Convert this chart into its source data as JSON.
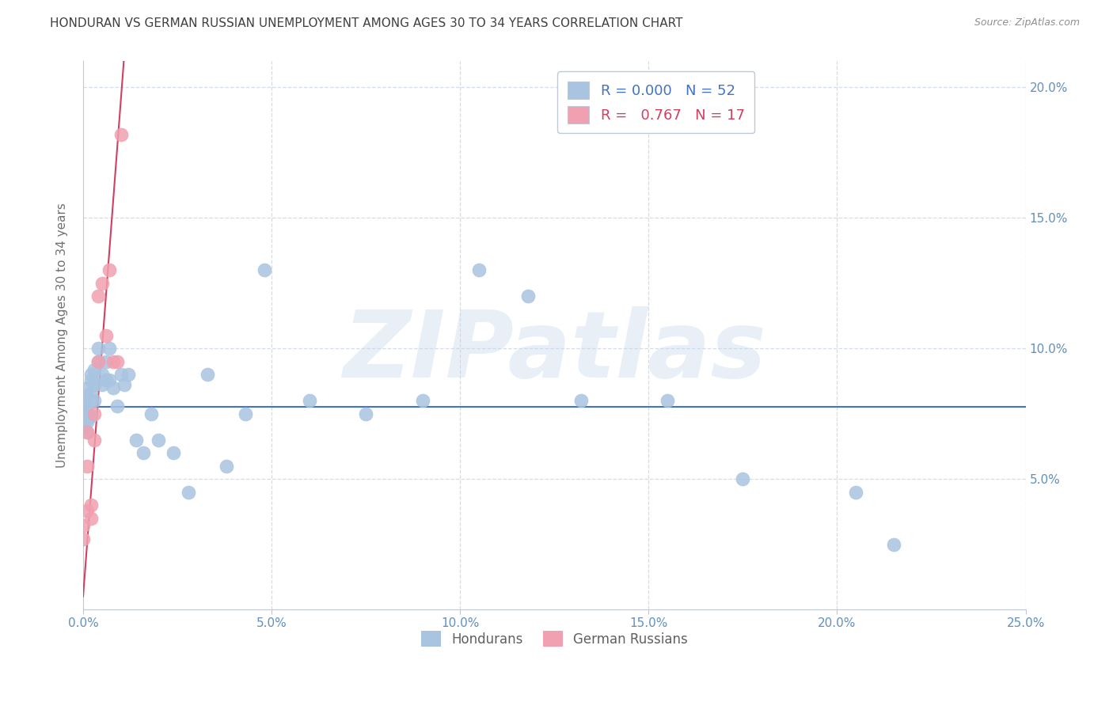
{
  "title": "HONDURAN VS GERMAN RUSSIAN UNEMPLOYMENT AMONG AGES 30 TO 34 YEARS CORRELATION CHART",
  "source": "Source: ZipAtlas.com",
  "ylabel": "Unemployment Among Ages 30 to 34 years",
  "xlim": [
    0.0,
    0.25
  ],
  "ylim": [
    0.0,
    0.21
  ],
  "xticks": [
    0.0,
    0.05,
    0.1,
    0.15,
    0.2,
    0.25
  ],
  "yticks": [
    0.0,
    0.05,
    0.1,
    0.15,
    0.2
  ],
  "xtick_labels": [
    "0.0%",
    "5.0%",
    "10.0%",
    "15.0%",
    "20.0%",
    "25.0%"
  ],
  "ytick_labels_right": [
    "",
    "5.0%",
    "10.0%",
    "15.0%",
    "20.0%"
  ],
  "color_hondurans": "#a8c4e0",
  "color_german": "#f0a0b0",
  "legend_R_hondurans": "0.000",
  "legend_N_hondurans": "52",
  "legend_R_german": "0.767",
  "legend_N_german": "17",
  "hondurans_x": [
    0.0,
    0.0,
    0.0,
    0.0,
    0.0,
    0.001,
    0.001,
    0.001,
    0.001,
    0.001,
    0.001,
    0.002,
    0.002,
    0.002,
    0.002,
    0.002,
    0.003,
    0.003,
    0.003,
    0.004,
    0.004,
    0.005,
    0.005,
    0.006,
    0.006,
    0.007,
    0.007,
    0.008,
    0.009,
    0.01,
    0.011,
    0.012,
    0.014,
    0.016,
    0.018,
    0.02,
    0.024,
    0.028,
    0.033,
    0.038,
    0.043,
    0.048,
    0.06,
    0.075,
    0.09,
    0.105,
    0.118,
    0.132,
    0.155,
    0.175,
    0.205,
    0.215
  ],
  "hondurans_y": [
    0.075,
    0.072,
    0.078,
    0.07,
    0.08,
    0.076,
    0.073,
    0.082,
    0.068,
    0.085,
    0.072,
    0.074,
    0.08,
    0.088,
    0.083,
    0.09,
    0.086,
    0.08,
    0.092,
    0.095,
    0.1,
    0.086,
    0.09,
    0.088,
    0.095,
    0.1,
    0.088,
    0.085,
    0.078,
    0.09,
    0.086,
    0.09,
    0.065,
    0.06,
    0.075,
    0.065,
    0.06,
    0.045,
    0.09,
    0.055,
    0.075,
    0.13,
    0.08,
    0.075,
    0.08,
    0.13,
    0.12,
    0.08,
    0.08,
    0.05,
    0.045,
    0.025
  ],
  "german_x": [
    0.0,
    0.0,
    0.001,
    0.001,
    0.001,
    0.002,
    0.002,
    0.003,
    0.003,
    0.004,
    0.004,
    0.005,
    0.006,
    0.007,
    0.008,
    0.009,
    0.01
  ],
  "german_y": [
    0.032,
    0.027,
    0.038,
    0.055,
    0.068,
    0.04,
    0.035,
    0.065,
    0.075,
    0.095,
    0.12,
    0.125,
    0.105,
    0.13,
    0.095,
    0.095,
    0.182
  ],
  "trend_hondurans_intercept": 0.0775,
  "trend_german_slope": 19.0,
  "trend_german_intercept": 0.005,
  "watermark": "ZIPatlas",
  "background_color": "#ffffff",
  "grid_color": "#d4dce8",
  "tick_color": "#6090c0",
  "title_color": "#404040",
  "hondurans_trend_color": "#4472c4",
  "german_trend_color": "#d04060",
  "figsize": [
    14.06,
    8.92
  ],
  "dpi": 100
}
